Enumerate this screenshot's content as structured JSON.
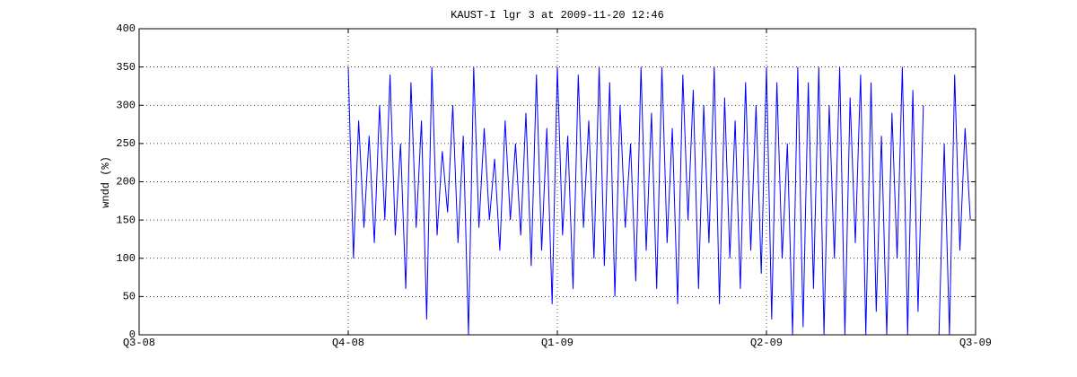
{
  "chart_data": {
    "type": "line",
    "title": "KAUST-I lgr 3 at 2009-11-20 12:46",
    "ylabel": "wndd (%)",
    "color": "#0000ff",
    "grid": true,
    "xlim": [
      0,
      4
    ],
    "xticks": [
      {
        "value": 0,
        "label": "Q3-08"
      },
      {
        "value": 1,
        "label": "Q4-08"
      },
      {
        "value": 2,
        "label": "Q1-09"
      },
      {
        "value": 3,
        "label": "Q2-09"
      },
      {
        "value": 4,
        "label": "Q3-09"
      }
    ],
    "ylim": [
      0,
      400
    ],
    "yticks": [
      0,
      50,
      100,
      150,
      200,
      250,
      300,
      350,
      400
    ],
    "x": [
      1,
      1.025,
      1.05,
      1.075,
      1.1,
      1.125,
      1.15,
      1.175,
      1.2,
      1.225,
      1.25,
      1.275,
      1.3,
      1.325,
      1.35,
      1.375,
      1.4,
      1.425,
      1.45,
      1.475,
      1.5,
      1.525,
      1.55,
      1.575,
      1.6,
      1.625,
      1.65,
      1.675,
      1.7,
      1.725,
      1.75,
      1.775,
      1.8,
      1.825,
      1.85,
      1.875,
      1.9,
      1.925,
      1.95,
      1.975,
      2,
      2.025,
      2.05,
      2.075,
      2.1,
      2.125,
      2.15,
      2.175,
      2.2,
      2.225,
      2.25,
      2.275,
      2.3,
      2.325,
      2.35,
      2.375,
      2.4,
      2.425,
      2.45,
      2.475,
      2.5,
      2.525,
      2.55,
      2.575,
      2.6,
      2.625,
      2.65,
      2.675,
      2.7,
      2.725,
      2.75,
      2.775,
      2.8,
      2.825,
      2.85,
      2.875,
      2.9,
      2.925,
      2.95,
      2.975,
      3,
      3.025,
      3.05,
      3.075,
      3.1,
      3.125,
      3.15,
      3.175,
      3.2,
      3.225,
      3.25,
      3.275,
      3.3,
      3.325,
      3.35,
      3.375,
      3.4,
      3.425,
      3.45,
      3.475,
      3.5,
      3.525,
      3.55,
      3.575,
      3.6,
      3.625,
      3.65,
      3.675,
      3.7,
      3.725,
      3.75,
      3.775,
      3.8,
      3.825,
      3.85,
      3.875,
      3.9,
      3.925,
      3.95,
      3.975
    ],
    "values": [
      350,
      100,
      280,
      140,
      260,
      120,
      300,
      150,
      340,
      130,
      250,
      60,
      330,
      140,
      280,
      20,
      350,
      130,
      240,
      160,
      300,
      120,
      260,
      0,
      350,
      140,
      270,
      150,
      230,
      110,
      280,
      150,
      250,
      130,
      290,
      90,
      340,
      110,
      270,
      40,
      350,
      130,
      260,
      60,
      340,
      140,
      280,
      100,
      350,
      90,
      330,
      50,
      300,
      140,
      250,
      70,
      350,
      110,
      290,
      60,
      350,
      120,
      270,
      40,
      340,
      150,
      320,
      60,
      300,
      120,
      350,
      40,
      310,
      100,
      280,
      60,
      330,
      110,
      300,
      80,
      350,
      20,
      330,
      100,
      250,
      0,
      350,
      10,
      330,
      60,
      350,
      0,
      300,
      100,
      350,
      0,
      310,
      120,
      340,
      0,
      330,
      30,
      260,
      0,
      290,
      100,
      350,
      0,
      320,
      30,
      300,
      null,
      null,
      0,
      250,
      0,
      340,
      110,
      270,
      150
    ]
  }
}
